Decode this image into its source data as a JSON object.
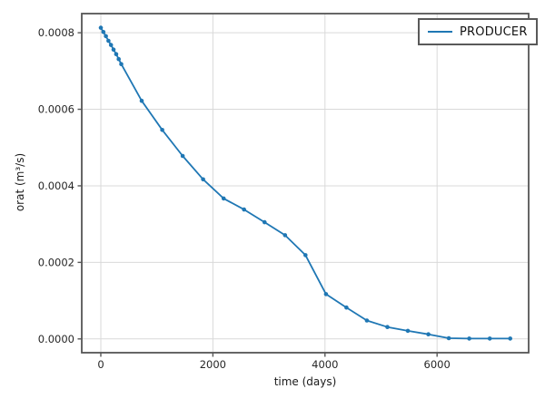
{
  "figure": {
    "background": "#ffffff",
    "xlabel": "time (days)",
    "ylabel": "orat (m³/s)"
  },
  "legend": {
    "label": "PRODUCER",
    "position": "upper right",
    "line_color": "#1f77b4",
    "border_color": "#595959"
  },
  "chart_data": {
    "type": "line",
    "title": "",
    "xlabel": "time (days)",
    "ylabel": "orat (m³/s)",
    "grid": true,
    "legend_position": "upper right",
    "xlim": [
      -340,
      7634
    ],
    "ylim": [
      -3.6e-05,
      0.00085
    ],
    "xticks": {
      "values": [
        0,
        2000,
        4000,
        6000
      ],
      "labels": [
        "0",
        "2000",
        "4000",
        "6000"
      ]
    },
    "yticks": {
      "values": [
        0.0,
        0.0002,
        0.0004,
        0.0006,
        0.0008
      ],
      "labels": [
        "0.0000",
        "0.0002",
        "0.0004",
        "0.0006",
        "0.0008"
      ]
    },
    "colors": {
      "line": "#1f77b4",
      "grid": "#d9d9d9",
      "spine": "#565656",
      "text": "#262626"
    },
    "series": [
      {
        "name": "PRODUCER",
        "color": "#1f77b4",
        "marker": "circle",
        "x": [
          1,
          46,
          91,
          137,
          182,
          228,
          274,
          319,
          365,
          730,
          1096,
          1461,
          1826,
          2191,
          2557,
          2922,
          3287,
          3652,
          4018,
          4383,
          4748,
          5113,
          5479,
          5844,
          6209,
          6574,
          6940,
          7305
        ],
        "y": [
          0.000813,
          0.000802,
          0.000791,
          0.000779,
          0.000768,
          0.000756,
          0.000744,
          0.000731,
          0.000718,
          0.000622,
          0.000546,
          0.000478,
          0.000417,
          0.000367,
          0.000338,
          0.000305,
          0.000271,
          0.000219,
          0.000117,
          8.2e-05,
          4.8e-05,
          3.1e-05,
          2.1e-05,
          1.2e-05,
          2e-06,
          1e-06,
          1e-06,
          1e-06
        ]
      }
    ]
  }
}
